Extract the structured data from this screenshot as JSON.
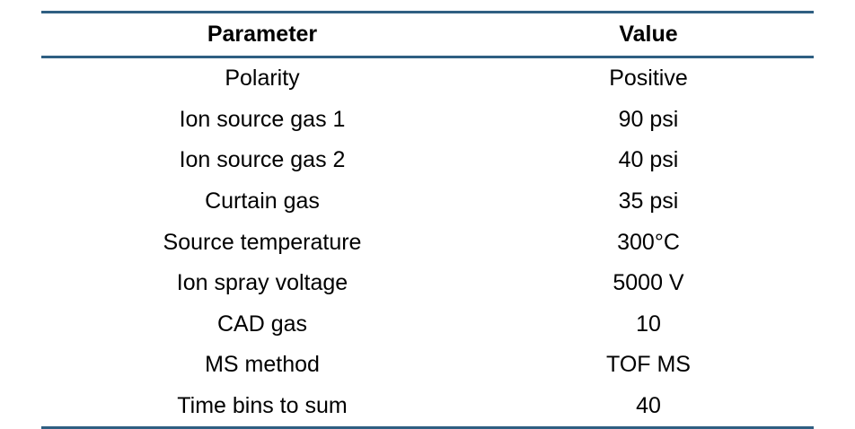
{
  "table": {
    "headers": [
      "Parameter",
      "Value"
    ],
    "rows": [
      [
        "Polarity",
        "Positive"
      ],
      [
        "Ion source gas 1",
        "90 psi"
      ],
      [
        "Ion source gas 2",
        "40 psi"
      ],
      [
        "Curtain gas",
        "35 psi"
      ],
      [
        "Source temperature",
        "300°C"
      ],
      [
        "Ion spray voltage",
        "5000 V"
      ],
      [
        "CAD gas",
        "10"
      ],
      [
        "MS method",
        "TOF MS"
      ],
      [
        "Time bins to sum",
        "40"
      ]
    ]
  },
  "colors": {
    "rule": "#2f5f82",
    "text": "#000000",
    "background": "#ffffff"
  }
}
